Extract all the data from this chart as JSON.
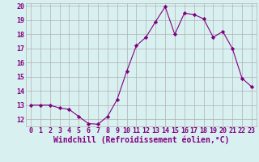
{
  "x": [
    0,
    1,
    2,
    3,
    4,
    5,
    6,
    7,
    8,
    9,
    10,
    11,
    12,
    13,
    14,
    15,
    16,
    17,
    18,
    19,
    20,
    21,
    22,
    23
  ],
  "y": [
    13.0,
    13.0,
    13.0,
    12.8,
    12.7,
    12.2,
    11.7,
    11.65,
    12.2,
    13.4,
    15.4,
    17.2,
    17.8,
    18.9,
    19.95,
    18.0,
    19.5,
    19.4,
    19.1,
    17.8,
    18.2,
    17.0,
    14.9,
    14.3
  ],
  "line_color": "#800080",
  "marker": "D",
  "marker_size": 2.2,
  "bg_color": "#d9f0f0",
  "grid_color": "#b0b0b0",
  "axis_color": "#800080",
  "xlabel": "Windchill (Refroidissement éolien,°C)",
  "xlabel_fontsize": 7,
  "tick_fontsize": 6,
  "ylim": [
    11.5,
    20.2
  ],
  "xlim": [
    -0.5,
    23.5
  ],
  "yticks": [
    12,
    13,
    14,
    15,
    16,
    17,
    18,
    19,
    20
  ],
  "xtick_labels": [
    "0",
    "1",
    "2",
    "3",
    "4",
    "5",
    "6",
    "7",
    "8",
    "9",
    "10",
    "11",
    "12",
    "13",
    "14",
    "15",
    "16",
    "17",
    "18",
    "19",
    "20",
    "21",
    "22",
    "23"
  ]
}
